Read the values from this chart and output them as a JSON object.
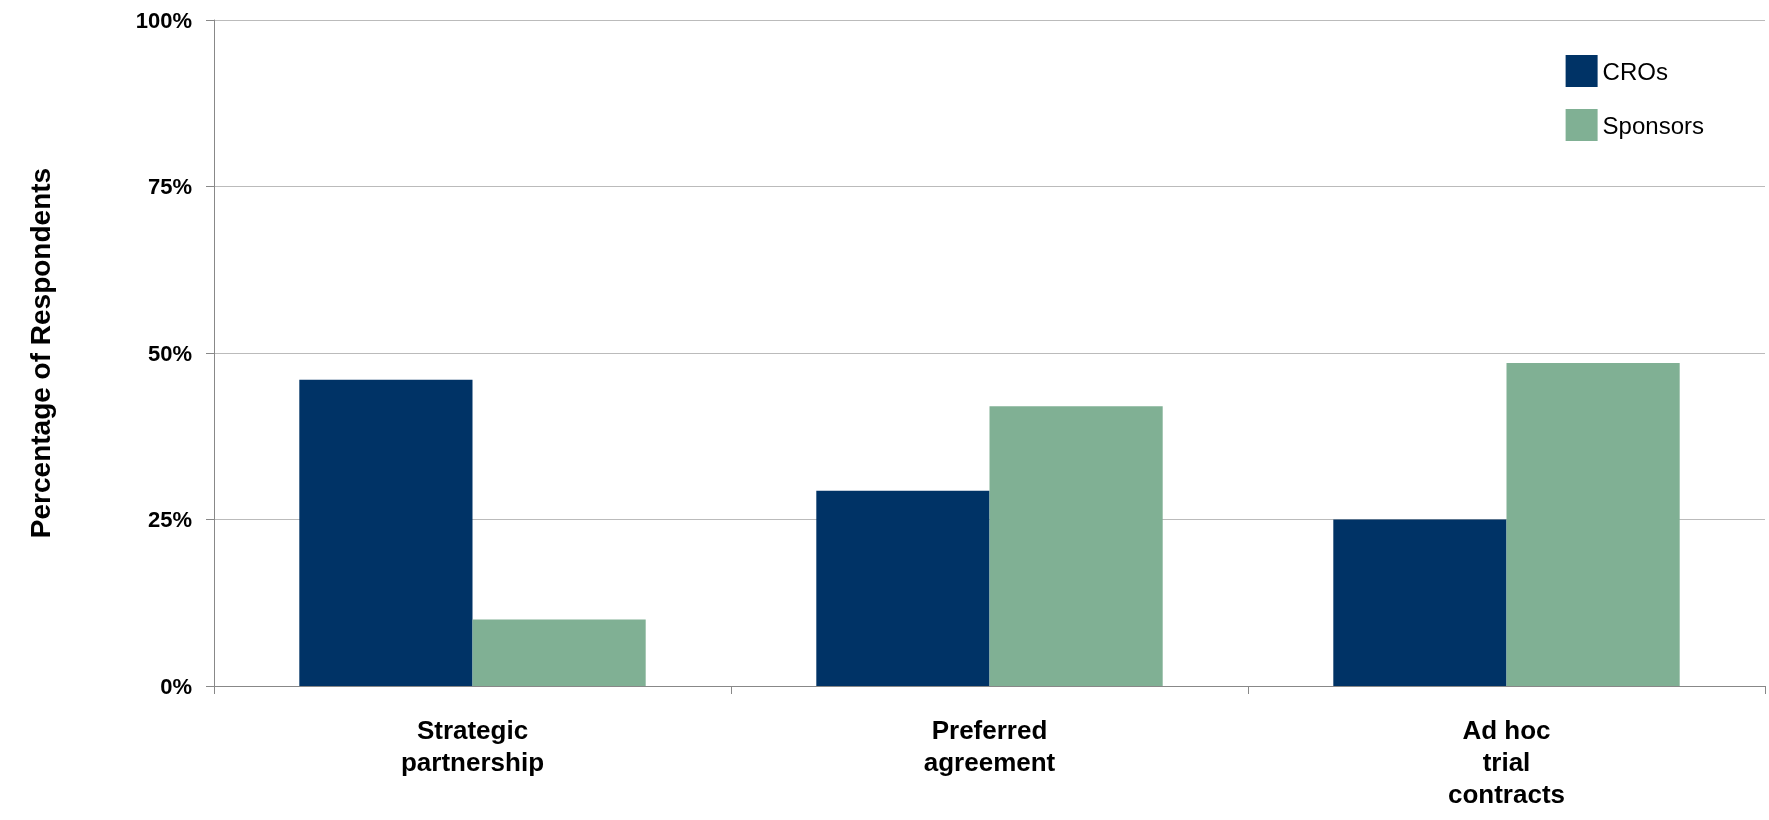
{
  "chart_data": {
    "type": "bar",
    "ylabel": "Percentage of Respondents",
    "categories": [
      "Strategic\npartnership",
      "Preferred\nagreement",
      "Ad hoc\ntrial\ncontracts"
    ],
    "series": [
      {
        "name": "CROs",
        "color": "#003366",
        "values": [
          46,
          29.3,
          25
        ]
      },
      {
        "name": "Sponsors",
        "color": "#80b094",
        "values": [
          10,
          42,
          48.5
        ]
      }
    ],
    "ylim": [
      0,
      100
    ],
    "yticks": [
      {
        "value": 0,
        "label": "0%"
      },
      {
        "value": 25,
        "label": "25%"
      },
      {
        "value": 50,
        "label": "50%"
      },
      {
        "value": 75,
        "label": "75%"
      },
      {
        "value": 100,
        "label": "100%"
      }
    ],
    "grid": "y",
    "legend": "top right"
  }
}
